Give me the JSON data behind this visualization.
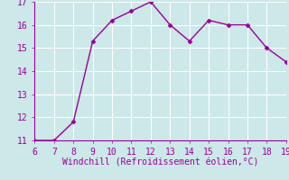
{
  "x": [
    6,
    7,
    8,
    9,
    10,
    11,
    12,
    13,
    14,
    15,
    16,
    17,
    18,
    19
  ],
  "y": [
    11.0,
    11.0,
    11.8,
    15.3,
    16.2,
    16.6,
    17.0,
    16.0,
    15.3,
    16.2,
    16.0,
    16.0,
    15.0,
    14.4
  ],
  "xlim": [
    6,
    19
  ],
  "ylim": [
    11,
    17
  ],
  "xticks": [
    6,
    7,
    8,
    9,
    10,
    11,
    12,
    13,
    14,
    15,
    16,
    17,
    18,
    19
  ],
  "yticks": [
    11,
    12,
    13,
    14,
    15,
    16,
    17
  ],
  "xlabel": "Windchill (Refroidissement éolien,°C)",
  "line_color": "#990099",
  "marker_color": "#990099",
  "bg_color": "#cce8e8",
  "grid_color": "#ffffff",
  "spine_color": "#990099",
  "xlabel_color": "#990099",
  "tick_color": "#990099",
  "tick_fontsize": 7,
  "xlabel_fontsize": 7
}
